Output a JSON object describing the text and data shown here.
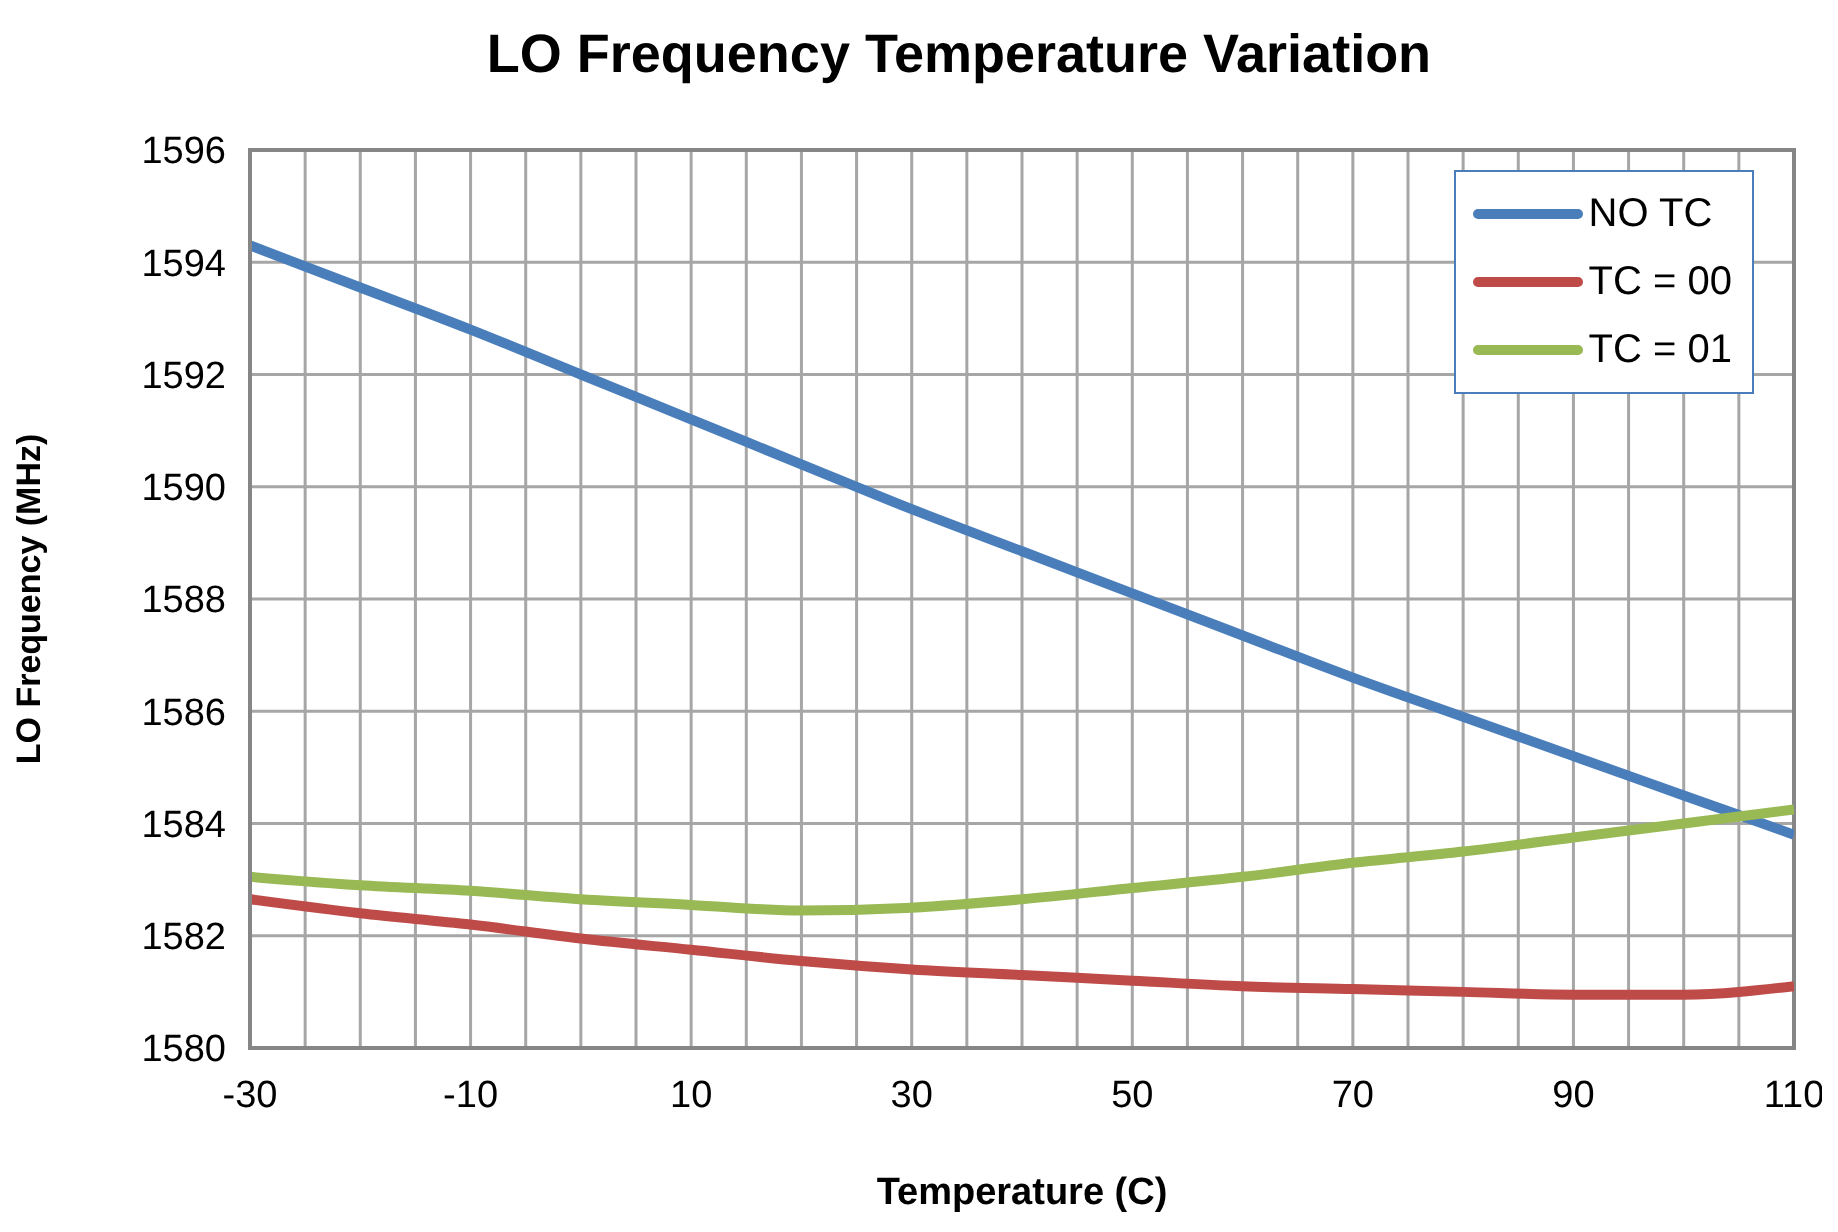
{
  "chart_data": {
    "type": "line",
    "title": "LO Frequency Temperature Variation",
    "xlabel": "Temperature (C)",
    "ylabel": "LO Frequency (MHz)",
    "x": [
      -30,
      -20,
      -10,
      0,
      10,
      20,
      30,
      40,
      50,
      60,
      70,
      80,
      90,
      100,
      110
    ],
    "series": [
      {
        "name": "NO TC",
        "color": "#4a7ebb",
        "values": [
          1594.3,
          1593.55,
          1592.8,
          1592.0,
          1591.2,
          1590.4,
          1589.6,
          1588.85,
          1588.1,
          1587.35,
          1586.6,
          1585.9,
          1585.2,
          1584.5,
          1583.8
        ]
      },
      {
        "name": "TC = 00",
        "color": "#be4b48",
        "values": [
          1582.65,
          1582.4,
          1582.2,
          1581.95,
          1581.75,
          1581.55,
          1581.4,
          1581.3,
          1581.2,
          1581.1,
          1581.05,
          1581.0,
          1580.95,
          1580.95,
          1581.1
        ]
      },
      {
        "name": "TC = 01",
        "color": "#98b954",
        "values": [
          1583.05,
          1582.9,
          1582.8,
          1582.65,
          1582.55,
          1582.45,
          1582.5,
          1582.65,
          1582.85,
          1583.05,
          1583.3,
          1583.5,
          1583.75,
          1584.0,
          1584.25
        ]
      }
    ],
    "xlim": [
      -30,
      110
    ],
    "xticks": [
      -30,
      {
        "value": -25,
        "label": null
      },
      {
        "value": -20,
        "label": null
      },
      {
        "value": -15,
        "label": null
      },
      -10,
      {
        "value": -5,
        "label": null
      },
      {
        "value": 0,
        "label": null
      },
      {
        "value": 5,
        "label": null
      },
      10,
      {
        "value": 15,
        "label": null
      },
      {
        "value": 20,
        "label": null
      },
      {
        "value": 25,
        "label": null
      },
      30,
      {
        "value": 35,
        "label": null
      },
      {
        "value": 40,
        "label": null
      },
      {
        "value": 45,
        "label": null
      },
      50,
      {
        "value": 55,
        "label": null
      },
      {
        "value": 60,
        "label": null
      },
      {
        "value": 65,
        "label": null
      },
      70,
      {
        "value": 75,
        "label": null
      },
      {
        "value": 80,
        "label": null
      },
      {
        "value": 85,
        "label": null
      },
      90,
      {
        "value": 95,
        "label": null
      },
      {
        "value": 100,
        "label": null
      },
      {
        "value": 105,
        "label": null
      },
      110
    ],
    "ylim": [
      1580,
      1596
    ],
    "yticks": [
      1580,
      1582,
      1584,
      1586,
      1588,
      1590,
      1592,
      1594,
      1596
    ],
    "grid": true,
    "legend": "top right",
    "marker": "none",
    "line_style": "solid"
  }
}
